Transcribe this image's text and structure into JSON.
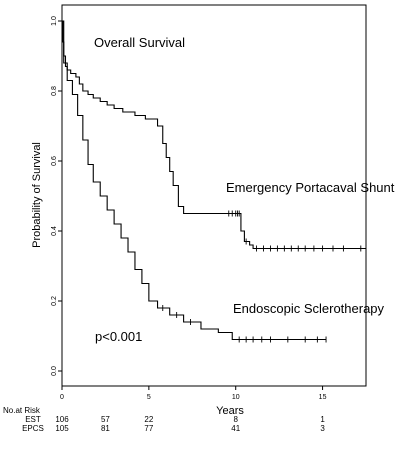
{
  "chart_data": {
    "type": "line",
    "title": "Overall Survival",
    "xlabel": "Years",
    "ylabel": "Probability of Survival",
    "xlim": [
      0,
      17.5
    ],
    "ylim": [
      0,
      1.0
    ],
    "xticks": [
      "0",
      "5",
      "10",
      "15"
    ],
    "yticks": [
      "0.0",
      "0.2",
      "0.4",
      "0.6",
      "0.8",
      "1.0"
    ],
    "pvalue": "p<0.001",
    "series": [
      {
        "name": "Emergency Portacaval Shunt",
        "x": [
          0,
          0.05,
          0.1,
          0.2,
          0.3,
          0.5,
          0.8,
          1.0,
          1.2,
          1.5,
          1.8,
          2.2,
          2.6,
          3.0,
          3.5,
          4.2,
          4.8,
          5.5,
          5.8,
          6.0,
          6.2,
          6.4,
          6.7,
          7.0,
          9.5,
          10.3,
          10.5,
          10.8,
          11.0,
          17.5
        ],
        "y": [
          1.0,
          0.94,
          0.9,
          0.87,
          0.86,
          0.85,
          0.84,
          0.82,
          0.8,
          0.79,
          0.78,
          0.77,
          0.76,
          0.75,
          0.74,
          0.73,
          0.72,
          0.7,
          0.65,
          0.61,
          0.57,
          0.53,
          0.47,
          0.45,
          0.45,
          0.4,
          0.37,
          0.36,
          0.35,
          0.35
        ]
      },
      {
        "name": "Endoscopic Sclerotherapy",
        "x": [
          0,
          0.1,
          0.3,
          0.6,
          0.9,
          1.2,
          1.5,
          1.8,
          2.2,
          2.6,
          3.0,
          3.4,
          3.8,
          4.2,
          4.6,
          5.0,
          5.5,
          6.2,
          7.0,
          8.0,
          9.0,
          9.8,
          15.2
        ],
        "y": [
          1.0,
          0.88,
          0.83,
          0.79,
          0.73,
          0.66,
          0.59,
          0.54,
          0.5,
          0.46,
          0.42,
          0.38,
          0.34,
          0.29,
          0.25,
          0.2,
          0.18,
          0.16,
          0.14,
          0.12,
          0.11,
          0.09,
          0.09
        ]
      }
    ],
    "censor": [
      {
        "series": 0,
        "x": [
          9.6,
          9.8,
          10.0,
          10.1,
          10.2,
          10.6,
          11.2,
          11.6,
          12.0,
          12.4,
          12.8,
          13.2,
          13.6,
          14.0,
          14.5,
          15.0,
          15.6,
          16.2,
          17.2
        ]
      },
      {
        "series": 1,
        "x": [
          5.8,
          6.6,
          7.4,
          10.2,
          10.6,
          11.0,
          11.5,
          12.0,
          13.0,
          14.0,
          14.7,
          15.2
        ]
      }
    ],
    "risk_table": {
      "title": "No.at Risk",
      "rows": [
        {
          "label": "EST",
          "values": [
            "106",
            "57",
            "22",
            "8",
            "1"
          ]
        },
        {
          "label": "EPCS",
          "values": [
            "105",
            "81",
            "77",
            "41",
            "3"
          ]
        }
      ]
    }
  }
}
